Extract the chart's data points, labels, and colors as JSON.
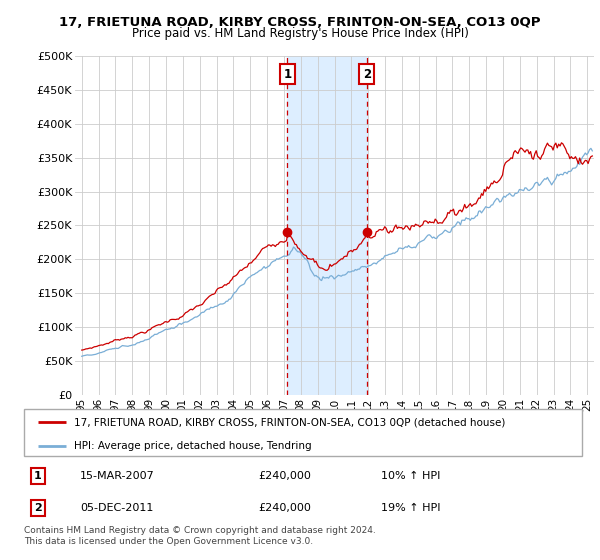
{
  "title": "17, FRIETUNA ROAD, KIRBY CROSS, FRINTON-ON-SEA, CO13 0QP",
  "subtitle": "Price paid vs. HM Land Registry's House Price Index (HPI)",
  "legend_line1": "17, FRIETUNA ROAD, KIRBY CROSS, FRINTON-ON-SEA, CO13 0QP (detached house)",
  "legend_line2": "HPI: Average price, detached house, Tendring",
  "annotation1_label": "1",
  "annotation1_date": "15-MAR-2007",
  "annotation1_price": "£240,000",
  "annotation1_hpi": "10% ↑ HPI",
  "annotation2_label": "2",
  "annotation2_date": "05-DEC-2011",
  "annotation2_price": "£240,000",
  "annotation2_hpi": "19% ↑ HPI",
  "footer": "Contains HM Land Registry data © Crown copyright and database right 2024.\nThis data is licensed under the Open Government Licence v3.0.",
  "red_color": "#cc0000",
  "blue_color": "#7aaed6",
  "shaded_color": "#ddeeff",
  "annotation_box_color": "#cc0000",
  "ylim_min": 0,
  "ylim_max": 500000,
  "yticks": [
    0,
    50000,
    100000,
    150000,
    200000,
    250000,
    300000,
    350000,
    400000,
    450000,
    500000
  ],
  "ytick_labels": [
    "£0",
    "£50K",
    "£100K",
    "£150K",
    "£200K",
    "£250K",
    "£300K",
    "£350K",
    "£400K",
    "£450K",
    "£500K"
  ],
  "sale1_year": 2007.21,
  "sale1_y": 240000,
  "sale2_year": 2011.92,
  "sale2_y": 240000,
  "xlim_min": 1994.6,
  "xlim_max": 2025.4
}
